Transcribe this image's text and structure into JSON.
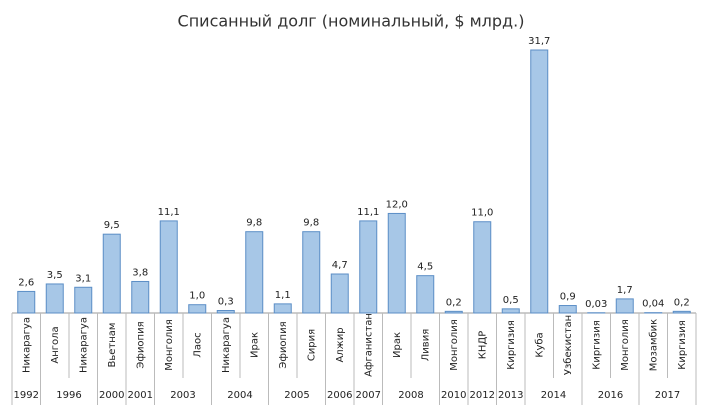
{
  "chart_data": {
    "type": "bar",
    "title": "Списанный долг (номинальный, $ млрд.)",
    "color": "#a7c7e7",
    "edge_color": "#5b8ec6",
    "groups": [
      {
        "label": "1992",
        "categories": [
          "Никарагуа"
        ],
        "values": [
          2.6
        ],
        "value_labels": [
          "2,6"
        ]
      },
      {
        "label": "1996",
        "categories": [
          "Ангола",
          "Никарагуа"
        ],
        "values": [
          3.5,
          3.1
        ],
        "value_labels": [
          "3,5",
          "3,1"
        ]
      },
      {
        "label": "2000",
        "categories": [
          "Вьетнам"
        ],
        "values": [
          9.5
        ],
        "value_labels": [
          "9,5"
        ]
      },
      {
        "label": "2001",
        "categories": [
          "Эфиопия"
        ],
        "values": [
          3.8
        ],
        "value_labels": [
          "3,8"
        ]
      },
      {
        "label": "2003",
        "categories": [
          "Монголия",
          "Лаос"
        ],
        "values": [
          11.1,
          1.0
        ],
        "value_labels": [
          "11,1",
          "1,0"
        ]
      },
      {
        "label": "2004",
        "categories": [
          "Никарагуа",
          "Ирак"
        ],
        "values": [
          0.3,
          9.8
        ],
        "value_labels": [
          "0,3",
          "9,8"
        ]
      },
      {
        "label": "2005",
        "categories": [
          "Эфиопия",
          "Сирия"
        ],
        "values": [
          1.1,
          9.8
        ],
        "value_labels": [
          "1,1",
          "9,8"
        ]
      },
      {
        "label": "2006",
        "categories": [
          "Алжир"
        ],
        "values": [
          4.7
        ],
        "value_labels": [
          "4,7"
        ]
      },
      {
        "label": "2007",
        "categories": [
          "Афганистан"
        ],
        "values": [
          11.1
        ],
        "value_labels": [
          "11,1"
        ]
      },
      {
        "label": "2008",
        "categories": [
          "Ирак",
          "Ливия"
        ],
        "values": [
          12.0,
          4.5
        ],
        "value_labels": [
          "12,0",
          "4,5"
        ]
      },
      {
        "label": "2010",
        "categories": [
          "Монголия"
        ],
        "values": [
          0.2
        ],
        "value_labels": [
          "0,2"
        ]
      },
      {
        "label": "2012",
        "categories": [
          "КНДР"
        ],
        "values": [
          11.0
        ],
        "value_labels": [
          "11,0"
        ]
      },
      {
        "label": "2013",
        "categories": [
          "Киргизия"
        ],
        "values": [
          0.5
        ],
        "value_labels": [
          "0,5"
        ]
      },
      {
        "label": "2014",
        "categories": [
          "Куба",
          "Узбекистан"
        ],
        "values": [
          31.7,
          0.9
        ],
        "value_labels": [
          "31,7",
          "0,9"
        ]
      },
      {
        "label": "2016",
        "categories": [
          "Киргизия",
          "Монголия"
        ],
        "values": [
          0.03,
          1.7
        ],
        "value_labels": [
          "0,03",
          "1,7"
        ]
      },
      {
        "label": "2017",
        "categories": [
          "Мозамбик",
          "Киргизия"
        ],
        "values": [
          0.04,
          0.2
        ],
        "value_labels": [
          "0,04",
          "0,2"
        ]
      }
    ]
  }
}
